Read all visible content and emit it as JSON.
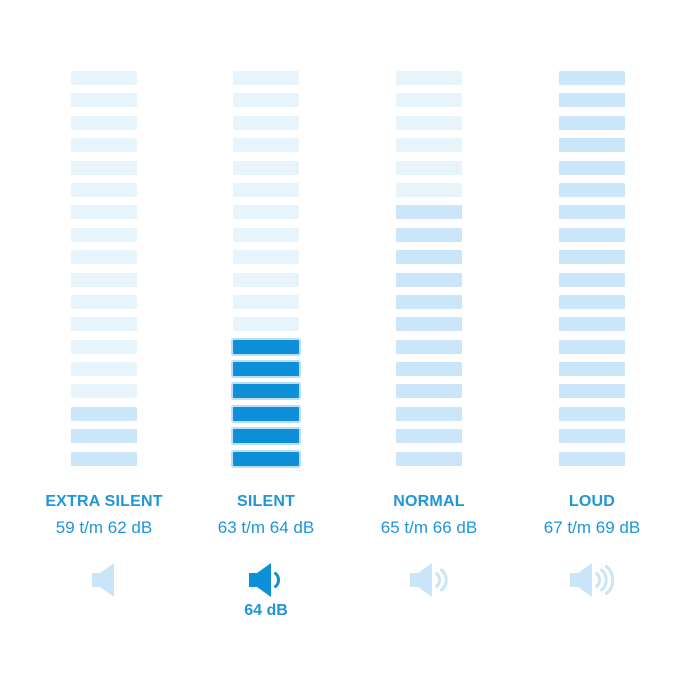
{
  "page": {
    "background": "#ffffff"
  },
  "colors": {
    "accent": "#0e90d8",
    "active_outline": "#b9def5",
    "bar_light": "#e8f4fc",
    "bar_medium": "#cbe6f8",
    "icon_muted": "#c9e5f7",
    "text_blue": "#2095d8"
  },
  "columns": [
    {
      "id": "extra-silent",
      "label": "EXTRA SILENT",
      "range": "59 t/m 62 dB",
      "bars": {
        "total": 18,
        "highlight_from": 16,
        "highlight_style": "medium"
      },
      "icon": {
        "waves": 0,
        "tone": "muted"
      },
      "selected": false,
      "selected_db": null
    },
    {
      "id": "silent",
      "label": "SILENT",
      "range": "63 t/m 64 dB",
      "bars": {
        "total": 18,
        "highlight_from": 13,
        "highlight_style": "active"
      },
      "icon": {
        "waves": 1,
        "tone": "accent"
      },
      "selected": true,
      "selected_db": "64 dB"
    },
    {
      "id": "normal",
      "label": "NORMAL",
      "range": "65 t/m 66 dB",
      "bars": {
        "total": 18,
        "highlight_from": 7,
        "highlight_style": "medium"
      },
      "icon": {
        "waves": 2,
        "tone": "muted"
      },
      "selected": false,
      "selected_db": null
    },
    {
      "id": "loud",
      "label": "LOUD",
      "range": "67 t/m 69 dB",
      "bars": {
        "total": 18,
        "highlight_from": 1,
        "highlight_style": "medium"
      },
      "icon": {
        "waves": 3,
        "tone": "muted"
      },
      "selected": false,
      "selected_db": null
    }
  ],
  "chart_data": {
    "type": "bar",
    "title": "",
    "categories": [
      "EXTRA SILENT",
      "SILENT",
      "NORMAL",
      "LOUD"
    ],
    "ranges_db": [
      "59 t/m 62 dB",
      "63 t/m 64 dB",
      "65 t/m 66 dB",
      "67 t/m 69 dB"
    ],
    "segments_total_per_column": 18,
    "segments_filled": [
      3,
      6,
      12,
      18
    ],
    "speaker_waves": [
      0,
      1,
      2,
      3
    ],
    "selected_category": "SILENT",
    "selected_value": "64 dB",
    "xlabel": "",
    "ylabel": "",
    "grid": false,
    "legend": false
  }
}
